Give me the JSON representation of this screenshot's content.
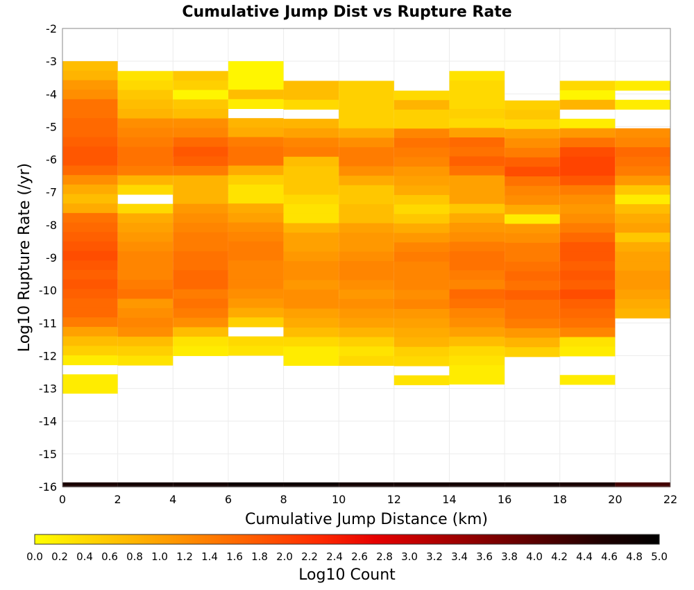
{
  "chart_data": {
    "type": "heatmap",
    "title": "Cumulative Jump Dist vs Rupture Rate",
    "xlabel": "Cumulative Jump Distance (km)",
    "ylabel": "Log10 Rupture Rate (/yr)",
    "colorbar_label": "Log10 Count",
    "xlim": [
      0,
      22
    ],
    "ylim": [
      -16,
      -2
    ],
    "x_ticks": [
      0,
      2,
      4,
      6,
      8,
      10,
      12,
      14,
      16,
      18,
      20,
      22
    ],
    "y_ticks": [
      -2,
      -3,
      -4,
      -5,
      -6,
      -7,
      -8,
      -9,
      -10,
      -11,
      -12,
      -13,
      -14,
      -15,
      -16
    ],
    "colorbar_range": [
      0.0,
      5.0
    ],
    "colorbar_ticks": [
      "0.0",
      "0.2",
      "0.4",
      "0.6",
      "0.8",
      "1.0",
      "1.2",
      "1.4",
      "1.6",
      "1.8",
      "2.0",
      "2.2",
      "2.4",
      "2.6",
      "2.8",
      "3.0",
      "3.2",
      "3.4",
      "3.6",
      "3.8",
      "4.0",
      "4.2",
      "4.4",
      "4.6",
      "4.8",
      "5.0"
    ],
    "colormap": [
      "#ffff00",
      "#ffd400",
      "#ffaa00",
      "#ff7f00",
      "#ff5500",
      "#ff2a00",
      "#e60000",
      "#b40000",
      "#820000",
      "#500000",
      "#1e0000",
      "#000000"
    ],
    "grid": true,
    "x_bin_width": 2,
    "y_bin_height": 0.29,
    "columns": [
      {
        "x0": 0,
        "y_start": -3.0,
        "values": [
          0.7,
          0.8,
          1.1,
          1.2,
          1.5,
          1.5,
          1.6,
          1.6,
          1.7,
          1.8,
          1.8,
          1.6,
          1.2,
          0.9,
          0.7,
          0.9,
          1.5,
          1.6,
          1.7,
          1.8,
          1.9,
          1.8,
          1.7,
          1.8,
          1.7,
          1.6,
          1.6,
          1.4,
          1.0,
          0.7,
          0.5,
          0.2,
          null,
          0.2,
          0.2
        ]
      },
      {
        "x0": 2,
        "y_start": -3.3,
        "values": [
          0.3,
          0.4,
          0.6,
          0.7,
          0.8,
          1.2,
          1.3,
          1.4,
          1.5,
          1.5,
          1.4,
          0.8,
          0.4,
          null,
          0.4,
          0.9,
          1.0,
          1.1,
          1.2,
          1.3,
          1.3,
          1.3,
          1.4,
          1.5,
          1.1,
          1.2,
          1.3,
          1.2,
          0.7,
          0.5,
          0.3
        ]
      },
      {
        "x0": 4,
        "y_start": -3.3,
        "values": [
          0.6,
          0.5,
          0.1,
          0.6,
          0.7,
          1.2,
          1.3,
          1.6,
          1.8,
          1.7,
          1.4,
          0.8,
          0.8,
          0.8,
          1.1,
          1.2,
          1.3,
          1.4,
          1.4,
          1.5,
          1.5,
          1.6,
          1.6,
          1.4,
          1.5,
          1.4,
          1.2,
          0.7,
          0.3,
          0.2
        ]
      },
      {
        "x0": 6,
        "y_start": -3.0,
        "values": [
          0.1,
          0.1,
          0.1,
          0.7,
          0.2,
          null,
          0.8,
          0.9,
          1.4,
          1.5,
          1.5,
          0.9,
          0.5,
          0.3,
          0.3,
          0.9,
          1.0,
          1.2,
          1.3,
          1.4,
          1.4,
          1.3,
          1.3,
          1.3,
          1.2,
          1.1,
          0.9,
          0.5,
          null,
          0.4,
          0.3
        ]
      },
      {
        "x0": 8,
        "y_start": -3.6,
        "values": [
          0.7,
          0.7,
          0.4,
          null,
          0.8,
          1.0,
          1.3,
          1.4,
          0.7,
          0.6,
          0.6,
          0.6,
          0.4,
          0.3,
          0.3,
          0.8,
          1.0,
          1.0,
          1.1,
          1.2,
          1.2,
          1.1,
          1.2,
          1.2,
          1.0,
          0.9,
          0.7,
          0.4,
          0.2,
          0.2
        ]
      },
      {
        "x0": 10,
        "y_start": -3.6,
        "values": [
          0.5,
          0.5,
          0.5,
          0.5,
          0.5,
          0.9,
          1.2,
          1.4,
          1.4,
          1.2,
          0.9,
          0.6,
          0.6,
          0.7,
          0.7,
          1.0,
          1.1,
          1.1,
          1.2,
          1.3,
          1.3,
          1.2,
          1.1,
          1.2,
          1.1,
          1.0,
          0.8,
          0.5,
          0.3,
          0.4
        ]
      },
      {
        "x0": 12,
        "y_start": -3.9,
        "values": [
          0.4,
          0.8,
          0.5,
          0.5,
          1.3,
          1.5,
          1.4,
          1.3,
          1.1,
          1.0,
          0.9,
          0.6,
          0.4,
          0.6,
          0.9,
          1.1,
          1.3,
          1.4,
          1.3,
          1.3,
          1.3,
          1.2,
          1.3,
          1.1,
          1.0,
          0.9,
          0.8,
          0.5,
          0.4,
          null,
          0.3,
          null
        ]
      },
      {
        "x0": 14,
        "y_start": -3.3,
        "values": [
          0.3,
          0.4,
          0.4,
          0.4,
          0.5,
          0.4,
          1.0,
          1.6,
          1.5,
          1.7,
          1.5,
          1.0,
          1.0,
          1.0,
          0.6,
          0.9,
          1.1,
          1.2,
          1.4,
          1.5,
          1.5,
          1.4,
          1.3,
          1.6,
          1.5,
          1.3,
          1.2,
          1.0,
          0.7,
          0.4,
          0.3,
          0.2,
          0.2
        ]
      },
      {
        "x0": 16,
        "y_start": -4.2,
        "values": [
          0.5,
          0.6,
          0.4,
          1.0,
          1.2,
          1.4,
          1.7,
          1.9,
          1.5,
          1.3,
          1.2,
          0.9,
          0.2,
          1.1,
          1.2,
          1.4,
          1.4,
          1.5,
          1.6,
          1.5,
          1.7,
          1.5,
          1.5,
          1.4,
          1.1,
          0.8,
          0.5
        ]
      },
      {
        "x0": 18,
        "y_start": -3.6,
        "values": [
          0.4,
          0.1,
          0.8,
          null,
          0.2,
          1.1,
          1.5,
          1.9,
          2.0,
          2.0,
          1.8,
          1.4,
          1.2,
          1.1,
          1.2,
          1.4,
          1.6,
          1.8,
          1.8,
          1.7,
          1.8,
          1.7,
          1.9,
          1.7,
          1.6,
          1.5,
          1.3,
          0.3,
          0.2,
          null,
          null,
          0.2
        ]
      },
      {
        "x0": 20,
        "y_start": -3.6,
        "values": [
          0.2,
          null,
          0.2,
          null,
          null,
          1.2,
          1.3,
          1.6,
          1.5,
          1.4,
          1.1,
          0.6,
          0.2,
          0.7,
          0.9,
          1.0,
          0.6,
          0.9,
          1.0,
          1.0,
          1.1,
          1.1,
          1.0,
          0.9,
          0.8
        ]
      }
    ],
    "bottom_band": {
      "y": -16,
      "values": [
        4.6,
        4.7,
        4.7,
        4.8,
        4.8,
        4.7,
        4.7,
        4.7,
        4.7,
        4.6,
        4.2
      ]
    }
  }
}
